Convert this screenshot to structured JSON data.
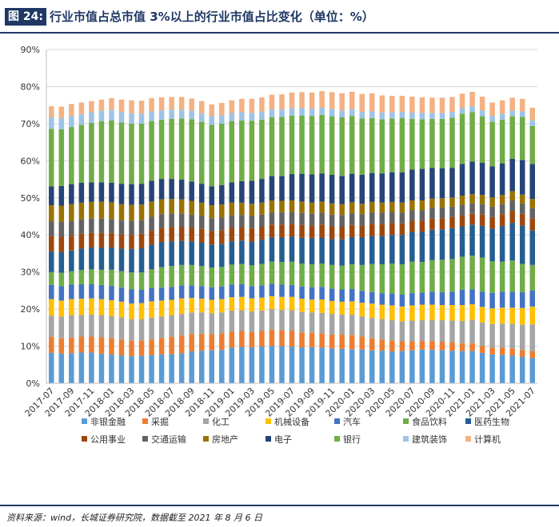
{
  "figure_label": "图 24:",
  "figure_title": "行业市值占总市值 3%以上的行业市值占比变化（单位：%）",
  "source": "资料来源：wind，长城证券研究院，数据截至 2021 年 8 月 6 日",
  "chart_data": {
    "type": "bar",
    "stacked": true,
    "title": "行业市值占总市值 3%以上的行业市值占比变化（单位：%）",
    "ylabel": "",
    "xlabel": "",
    "ylim": [
      0,
      90
    ],
    "yticks": [
      "0%",
      "10%",
      "20%",
      "30%",
      "40%",
      "50%",
      "60%",
      "70%",
      "80%",
      "90%"
    ],
    "xtick_labels": [
      "2017-07",
      "2017-09",
      "2017-11",
      "2018-01",
      "2018-03",
      "2018-05",
      "2018-07",
      "2018-09",
      "2018-11",
      "2019-01",
      "2019-03",
      "2019-05",
      "2019-07",
      "2019-09",
      "2019-11",
      "2020-01",
      "2020-03",
      "2020-05",
      "2020-07",
      "2020-09",
      "2020-11",
      "2021-01",
      "2021-03",
      "2021-05",
      "2021-07"
    ],
    "categories": [
      "2017-07",
      "2017-08",
      "2017-09",
      "2017-10",
      "2017-11",
      "2017-12",
      "2018-01",
      "2018-02",
      "2018-03",
      "2018-04",
      "2018-05",
      "2018-06",
      "2018-07",
      "2018-08",
      "2018-09",
      "2018-10",
      "2018-11",
      "2018-12",
      "2019-01",
      "2019-02",
      "2019-03",
      "2019-04",
      "2019-05",
      "2019-06",
      "2019-07",
      "2019-08",
      "2019-09",
      "2019-10",
      "2019-11",
      "2019-12",
      "2020-01",
      "2020-02",
      "2020-03",
      "2020-04",
      "2020-05",
      "2020-06",
      "2020-07",
      "2020-08",
      "2020-09",
      "2020-10",
      "2020-11",
      "2020-12",
      "2021-01",
      "2021-02",
      "2021-03",
      "2021-04",
      "2021-05",
      "2021-06",
      "2021-07"
    ],
    "series": [
      {
        "name": "非银金融",
        "color": "#5b9bd5",
        "values": [
          8.2,
          8.0,
          8.1,
          8.3,
          8.3,
          8.0,
          7.8,
          7.5,
          7.3,
          7.4,
          7.6,
          7.8,
          7.9,
          8.1,
          8.6,
          8.8,
          8.9,
          9.0,
          9.6,
          9.8,
          9.7,
          9.9,
          10.1,
          10.0,
          9.9,
          9.7,
          9.7,
          9.6,
          9.4,
          9.3,
          9.2,
          9.1,
          8.9,
          8.8,
          8.6,
          8.7,
          8.9,
          9.1,
          9.0,
          8.9,
          8.8,
          8.7,
          8.7,
          8.2,
          7.8,
          7.7,
          7.5,
          7.1,
          6.8
        ]
      },
      {
        "name": "采掘",
        "color": "#ed7d31",
        "values": [
          4.3,
          4.1,
          4.2,
          4.3,
          4.3,
          4.4,
          4.4,
          4.3,
          4.2,
          4.1,
          4.2,
          4.4,
          4.6,
          4.8,
          4.7,
          4.6,
          4.4,
          4.5,
          4.3,
          4.3,
          4.1,
          4.2,
          4.3,
          4.3,
          4.2,
          4.0,
          3.9,
          3.9,
          3.8,
          3.8,
          3.8,
          3.5,
          3.2,
          3.0,
          2.9,
          2.6,
          2.4,
          2.3,
          2.4,
          2.3,
          2.3,
          2.1,
          2.1,
          1.9,
          1.8,
          1.9,
          1.9,
          1.9,
          1.9
        ]
      },
      {
        "name": "化工",
        "color": "#a5a5a5",
        "values": [
          5.7,
          5.9,
          6.0,
          5.8,
          5.9,
          6.0,
          5.9,
          6.0,
          5.8,
          5.8,
          5.9,
          5.8,
          5.8,
          5.8,
          5.8,
          5.7,
          5.6,
          5.6,
          5.7,
          5.6,
          5.6,
          5.5,
          5.6,
          5.5,
          5.6,
          5.5,
          5.5,
          5.5,
          5.5,
          5.4,
          5.5,
          5.4,
          5.5,
          5.5,
          5.5,
          5.4,
          5.6,
          5.6,
          5.7,
          5.8,
          5.8,
          6.0,
          6.3,
          6.3,
          6.4,
          6.5,
          6.6,
          6.8,
          7.2
        ]
      },
      {
        "name": "机械设备",
        "color": "#ffc000",
        "values": [
          4.5,
          4.3,
          4.4,
          4.4,
          4.4,
          4.3,
          4.3,
          4.2,
          4.2,
          4.3,
          4.4,
          4.3,
          4.2,
          4.2,
          3.9,
          3.7,
          3.6,
          3.6,
          3.6,
          3.6,
          3.5,
          3.5,
          3.5,
          3.5,
          3.6,
          3.6,
          3.5,
          3.6,
          3.5,
          3.5,
          3.6,
          3.7,
          3.9,
          3.9,
          4.0,
          4.0,
          4.1,
          4.2,
          4.1,
          4.1,
          4.2,
          4.3,
          4.2,
          4.2,
          4.2,
          4.3,
          4.4,
          4.5,
          4.8
        ]
      },
      {
        "name": "汽车",
        "color": "#4472c4",
        "values": [
          3.8,
          3.9,
          3.9,
          3.9,
          3.8,
          3.8,
          3.9,
          3.8,
          3.8,
          3.6,
          3.6,
          3.5,
          3.5,
          3.5,
          3.4,
          3.4,
          3.4,
          3.4,
          3.4,
          3.4,
          3.3,
          3.3,
          3.3,
          3.3,
          3.2,
          3.3,
          3.3,
          3.4,
          3.3,
          3.3,
          3.3,
          3.2,
          3.1,
          3.1,
          3.2,
          3.2,
          3.3,
          3.3,
          3.5,
          3.5,
          3.6,
          4.1,
          4.0,
          4.1,
          4.2,
          4.3,
          4.3,
          4.3,
          4.3
        ]
      },
      {
        "name": "食品饮料",
        "color": "#70ad47",
        "values": [
          3.5,
          3.6,
          3.6,
          3.8,
          4.0,
          4.1,
          4.3,
          4.4,
          4.6,
          4.7,
          5.0,
          5.5,
          5.6,
          5.5,
          5.5,
          5.4,
          5.3,
          5.3,
          5.4,
          5.5,
          5.6,
          5.8,
          6.0,
          6.1,
          6.3,
          6.2,
          6.2,
          6.3,
          6.4,
          6.4,
          6.7,
          7.0,
          7.6,
          7.8,
          8.1,
          8.2,
          8.5,
          8.2,
          8.5,
          8.7,
          8.8,
          8.9,
          9.1,
          9.2,
          8.5,
          8.1,
          8.4,
          7.6,
          6.9
        ]
      },
      {
        "name": "医药生物",
        "color": "#255e91",
        "values": [
          5.5,
          5.6,
          5.6,
          5.8,
          5.9,
          6.0,
          6.0,
          6.1,
          6.3,
          6.5,
          6.7,
          6.8,
          6.7,
          6.5,
          6.4,
          6.3,
          6.2,
          6.2,
          6.3,
          6.3,
          6.4,
          6.5,
          6.5,
          6.6,
          6.7,
          6.9,
          7.0,
          7.0,
          7.0,
          7.1,
          7.3,
          7.4,
          7.5,
          7.6,
          7.7,
          7.9,
          8.0,
          8.1,
          8.2,
          8.2,
          8.3,
          8.2,
          8.4,
          8.6,
          8.8,
          9.6,
          10.2,
          10.3,
          9.3
        ]
      },
      {
        "name": "公用事业",
        "color": "#9e480e",
        "values": [
          4.2,
          4.1,
          4.0,
          4.0,
          3.9,
          3.9,
          3.9,
          3.8,
          3.8,
          3.9,
          3.8,
          3.8,
          3.8,
          3.8,
          3.7,
          3.7,
          3.7,
          3.7,
          3.7,
          3.6,
          3.6,
          3.5,
          3.5,
          3.5,
          3.5,
          3.5,
          3.4,
          3.5,
          3.4,
          3.4,
          3.3,
          3.2,
          3.3,
          3.3,
          3.2,
          3.1,
          3.0,
          3.0,
          3.0,
          3.0,
          3.0,
          3.0,
          2.9,
          3.0,
          3.1,
          3.2,
          3.2,
          3.2,
          3.3
        ]
      },
      {
        "name": "交通运输",
        "color": "#636363",
        "values": [
          4.0,
          4.0,
          4.0,
          3.9,
          3.9,
          3.9,
          3.8,
          3.8,
          3.8,
          3.7,
          3.7,
          3.7,
          3.7,
          3.6,
          3.5,
          3.5,
          3.4,
          3.4,
          3.3,
          3.3,
          3.3,
          3.3,
          3.3,
          3.3,
          3.2,
          3.2,
          3.2,
          3.2,
          3.2,
          3.2,
          3.2,
          3.1,
          3.1,
          3.0,
          3.0,
          2.9,
          2.9,
          2.9,
          2.9,
          2.9,
          2.8,
          2.8,
          2.8,
          2.8,
          2.8,
          2.7,
          2.8,
          2.8,
          2.7
        ]
      },
      {
        "name": "房地产",
        "color": "#997300",
        "values": [
          4.3,
          4.4,
          4.5,
          4.5,
          4.5,
          4.6,
          4.5,
          4.4,
          4.3,
          4.2,
          4.1,
          4.0,
          3.9,
          3.8,
          3.7,
          3.6,
          3.5,
          3.5,
          3.4,
          3.3,
          3.3,
          3.2,
          3.2,
          3.1,
          3.1,
          3.1,
          3.0,
          3.0,
          3.0,
          2.9,
          2.9,
          2.8,
          2.8,
          2.7,
          2.7,
          2.7,
          2.6,
          2.6,
          2.5,
          2.5,
          2.5,
          2.5,
          2.5,
          2.5,
          2.5,
          2.5,
          2.5,
          2.4,
          2.5
        ]
      },
      {
        "name": "电子",
        "color": "#264478",
        "values": [
          5.1,
          5.3,
          5.4,
          5.4,
          5.3,
          5.2,
          5.3,
          5.5,
          5.6,
          5.6,
          5.6,
          5.5,
          5.4,
          5.3,
          5.2,
          5.1,
          5.1,
          5.2,
          5.5,
          5.8,
          6.2,
          6.4,
          6.6,
          6.7,
          7.1,
          7.5,
          7.6,
          7.6,
          7.7,
          7.6,
          7.7,
          7.8,
          7.8,
          7.9,
          8.0,
          8.2,
          8.3,
          8.5,
          8.3,
          8.1,
          8.0,
          8.5,
          8.8,
          8.7,
          8.4,
          8.5,
          8.7,
          9.3,
          9.4
        ]
      },
      {
        "name": "银行",
        "color": "#70ad47",
        "values": [
          15.5,
          15.3,
          15.4,
          15.6,
          16.0,
          16.5,
          16.8,
          16.5,
          16.3,
          16.2,
          16.1,
          16.0,
          16.2,
          16.5,
          16.8,
          16.7,
          16.6,
          16.6,
          16.5,
          16.4,
          16.2,
          16.0,
          15.8,
          15.9,
          15.8,
          15.7,
          15.8,
          15.8,
          15.8,
          15.8,
          15.6,
          15.2,
          14.8,
          14.6,
          14.5,
          14.6,
          13.7,
          13.4,
          13.2,
          13.3,
          13.5,
          13.6,
          13.3,
          12.5,
          12.0,
          11.8,
          11.5,
          11.6,
          10.3
        ]
      },
      {
        "name": "建筑装饰",
        "color": "#9dc3e6",
        "values": [
          3.1,
          3.0,
          3.0,
          2.9,
          2.9,
          2.8,
          2.8,
          2.8,
          2.8,
          2.7,
          2.6,
          2.5,
          2.5,
          2.4,
          2.3,
          2.3,
          2.3,
          2.3,
          2.2,
          2.2,
          2.1,
          2.1,
          2.1,
          2.0,
          2.0,
          2.0,
          1.9,
          1.9,
          1.9,
          1.9,
          1.8,
          1.8,
          1.8,
          1.8,
          1.7,
          1.7,
          1.7,
          1.7,
          1.6,
          1.6,
          1.6,
          1.6,
          1.6,
          1.6,
          1.6,
          1.6,
          1.5,
          1.5,
          1.5
        ]
      },
      {
        "name": "计算机",
        "color": "#f4b183",
        "values": [
          3.0,
          3.1,
          3.2,
          3.1,
          3.0,
          3.0,
          3.2,
          3.4,
          3.5,
          3.5,
          3.6,
          3.5,
          3.4,
          3.4,
          3.3,
          3.3,
          3.2,
          3.3,
          3.4,
          3.6,
          3.8,
          3.9,
          4.0,
          4.1,
          4.2,
          4.3,
          4.4,
          4.5,
          4.6,
          4.6,
          4.7,
          4.8,
          4.9,
          4.6,
          4.4,
          4.3,
          4.3,
          4.2,
          4.1,
          4.1,
          4.0,
          3.8,
          3.9,
          3.7,
          3.6,
          3.6,
          3.5,
          3.4,
          3.4
        ]
      }
    ]
  }
}
